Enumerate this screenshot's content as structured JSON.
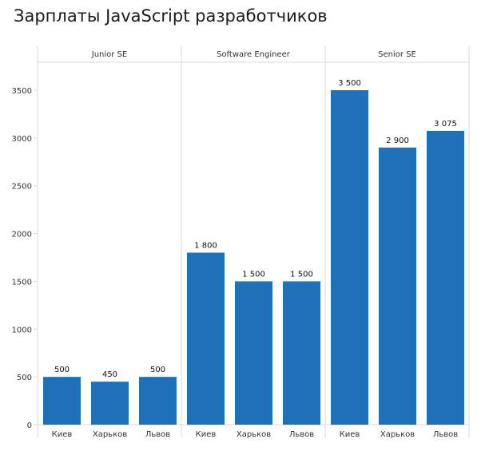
{
  "title": "Зарплаты JavaScript разработчиков",
  "colors": {
    "bar": "#1f72b8",
    "grid": "#d9d9d9",
    "text": "#333333"
  },
  "chart_data": {
    "type": "bar",
    "title": "Зарплаты JavaScript разработчиков",
    "xlabel": "",
    "ylabel": "",
    "ylim": [
      0,
      3700
    ],
    "yticks": [
      0,
      500,
      1000,
      1500,
      2000,
      2500,
      3000,
      3500
    ],
    "grid": false,
    "panels": [
      {
        "name": "Junior SE",
        "categories": [
          "Киев",
          "Харьков",
          "Львов"
        ],
        "values": [
          500,
          450,
          500
        ],
        "labels": [
          "500",
          "450",
          "500"
        ]
      },
      {
        "name": "Software Engineer",
        "categories": [
          "Киев",
          "Харьков",
          "Львов"
        ],
        "values": [
          1800,
          1500,
          1500
        ],
        "labels": [
          "1 800",
          "1 500",
          "1 500"
        ]
      },
      {
        "name": "Senior SE",
        "categories": [
          "Киев",
          "Харьков",
          "Львов"
        ],
        "values": [
          3500,
          2900,
          3075
        ],
        "labels": [
          "3 500",
          "2 900",
          "3 075"
        ]
      }
    ]
  }
}
